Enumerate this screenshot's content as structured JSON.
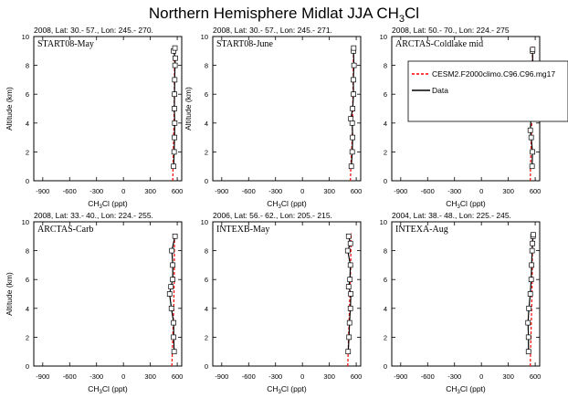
{
  "figure": {
    "title": "Northern Hemisphere Midlat JJA CH",
    "title_sub": "3",
    "title_suffix": "Cl"
  },
  "legend": {
    "items": [
      {
        "label": "CESM2.F2000climo.C96.C96.mg17",
        "color": "#ff0000",
        "dash": true,
        "marker": false
      },
      {
        "label": "Data",
        "color": "#000000",
        "dash": false,
        "marker": true
      }
    ]
  },
  "chart_data": [
    {
      "type": "line",
      "panel_label": "START08-May",
      "header": "2008, Lat:  30.- 57., Lon: 245.- 270.",
      "xlabel": "CH3Cl (ppt)",
      "ylabel": "Altitude (km)",
      "xlim": [
        -1000,
        650
      ],
      "ylim": [
        0,
        10
      ],
      "xticks": [
        -900,
        -600,
        -300,
        0,
        300,
        600
      ],
      "yticks": [
        0,
        2,
        4,
        6,
        8,
        10
      ],
      "series": [
        {
          "name": "CESM2.F2000climo.C96.C96.mg17",
          "x": [
            550,
            553,
            556,
            560,
            563,
            565,
            567,
            569,
            570,
            571,
            572
          ],
          "y": [
            0,
            1,
            2,
            3,
            4,
            5,
            6,
            7,
            8,
            9,
            9.3
          ]
        },
        {
          "name": "Data",
          "x": [
            560,
            565,
            570,
            572,
            568,
            570,
            572,
            575,
            578,
            560,
            574
          ],
          "y": [
            1,
            2,
            3,
            4,
            5,
            6,
            7,
            8,
            8.5,
            9,
            9.2
          ]
        }
      ]
    },
    {
      "type": "line",
      "panel_label": "START08-June",
      "header": "2008, Lat:  30.- 57., Lon: 245.- 271.",
      "xlabel": "CH3Cl (ppt)",
      "ylabel": "Altitude (km)",
      "xlim": [
        -1000,
        650
      ],
      "ylim": [
        0,
        10
      ],
      "xticks": [
        -900,
        -600,
        -300,
        0,
        300,
        600
      ],
      "yticks": [
        0,
        2,
        4,
        6,
        8,
        10
      ],
      "series": [
        {
          "name": "CESM2.F2000climo.C96.C96.mg17",
          "x": [
            535,
            540,
            548,
            555,
            558,
            560,
            563,
            566,
            568,
            570,
            571
          ],
          "y": [
            0,
            1,
            2,
            3,
            4,
            5,
            6,
            7,
            8,
            9,
            9.3
          ]
        },
        {
          "name": "Data",
          "x": [
            545,
            555,
            560,
            555,
            540,
            560,
            570,
            568,
            575,
            570,
            572
          ],
          "y": [
            1,
            2,
            3,
            4,
            4.3,
            5,
            6,
            7,
            8,
            9,
            9.2
          ]
        }
      ]
    },
    {
      "type": "line",
      "panel_label": "ARCTAS-Coldlake mid",
      "header": "2008, Lat:  50.- 70., Lon: 224.- 275",
      "xlabel": "CH3Cl (ppt)",
      "ylabel": "",
      "xlim": [
        -1000,
        650
      ],
      "ylim": [
        0,
        10
      ],
      "xticks": [
        -900,
        -600,
        -300,
        0,
        300,
        600
      ],
      "yticks": [
        0,
        2,
        4,
        6,
        8,
        10
      ],
      "series": [
        {
          "name": "CESM2.F2000climo.C96.C96.mg17",
          "x": [
            545,
            548,
            552,
            556,
            560,
            563,
            566,
            568,
            569,
            570,
            571
          ],
          "y": [
            0,
            1,
            2,
            3,
            4,
            5,
            6,
            7,
            8,
            9,
            9.3
          ]
        },
        {
          "name": "Data",
          "x": [
            565,
            570,
            555,
            545,
            560,
            540,
            555,
            560,
            575,
            570,
            572
          ],
          "y": [
            1,
            2,
            3,
            3.5,
            5,
            6,
            7,
            7.5,
            8,
            9,
            9.1
          ]
        }
      ]
    },
    {
      "type": "line",
      "panel_label": "ARCTAS-Carb",
      "header": "2008, Lat:  33.- 40., Lon: 224.- 255.",
      "xlabel": "CH3Cl (ppt)",
      "ylabel": "Altitude (km)",
      "xlim": [
        -1000,
        650
      ],
      "ylim": [
        0,
        10
      ],
      "xticks": [
        -900,
        -600,
        -300,
        0,
        300,
        600
      ],
      "yticks": [
        0,
        2,
        4,
        6,
        8,
        10
      ],
      "series": [
        {
          "name": "CESM2.F2000climo.C96.C96.mg17",
          "x": [
            540,
            545,
            550,
            555,
            560,
            563,
            566,
            568,
            569,
            570,
            571
          ],
          "y": [
            0,
            1,
            2,
            3,
            4,
            5,
            6,
            7,
            8,
            9,
            9.1
          ]
        },
        {
          "name": "Data",
          "x": [
            565,
            560,
            560,
            535,
            515,
            530,
            550,
            550,
            540,
            575
          ],
          "y": [
            1,
            2,
            3,
            4,
            5,
            5.5,
            6,
            7,
            8,
            9
          ]
        }
      ]
    },
    {
      "type": "line",
      "panel_label": "INTEXB-May",
      "header": "2006, Lat:  56.- 62., Lon: 205.- 215.",
      "xlabel": "CH3Cl (ppt)",
      "ylabel": "",
      "xlim": [
        -1000,
        650
      ],
      "ylim": [
        0,
        10
      ],
      "xticks": [
        -900,
        -600,
        -300,
        0,
        300,
        600
      ],
      "yticks": [
        0,
        2,
        4,
        6,
        8,
        10
      ],
      "series": [
        {
          "name": "CESM2.F2000climo.C96.C96.mg17",
          "x": [
            505,
            510,
            515,
            520,
            525,
            530,
            535,
            538,
            540,
            542,
            545
          ],
          "y": [
            0,
            1,
            2,
            3,
            4,
            5,
            6,
            7,
            8,
            9,
            9.2
          ]
        },
        {
          "name": "Data",
          "x": [
            510,
            520,
            525,
            535,
            540,
            515,
            530,
            535,
            505,
            535,
            515
          ],
          "y": [
            1,
            2,
            3,
            4,
            5,
            5.5,
            6,
            7,
            8,
            8.5,
            9
          ]
        }
      ]
    },
    {
      "type": "line",
      "panel_label": "INTEXA-Aug",
      "header": "2004, Lat:  38.- 48., Lon: 225.- 245.",
      "xlabel": "CH3Cl (ppt)",
      "ylabel": "",
      "xlim": [
        -1000,
        650
      ],
      "ylim": [
        0,
        10
      ],
      "xticks": [
        -900,
        -600,
        -300,
        0,
        300,
        600
      ],
      "yticks": [
        0,
        2,
        4,
        6,
        8,
        10
      ],
      "series": [
        {
          "name": "CESM2.F2000climo.C96.C96.mg17",
          "x": [
            545,
            548,
            552,
            556,
            560,
            563,
            566,
            568,
            569,
            570,
            571
          ],
          "y": [
            0,
            1,
            2,
            3,
            4,
            5,
            6,
            7,
            8,
            9,
            9.2
          ]
        },
        {
          "name": "Data",
          "x": [
            525,
            525,
            520,
            530,
            545,
            555,
            560,
            565,
            570,
            575,
            578
          ],
          "y": [
            1,
            2,
            3,
            4,
            5,
            6,
            7,
            8,
            8.5,
            9,
            9.1
          ]
        }
      ]
    }
  ]
}
